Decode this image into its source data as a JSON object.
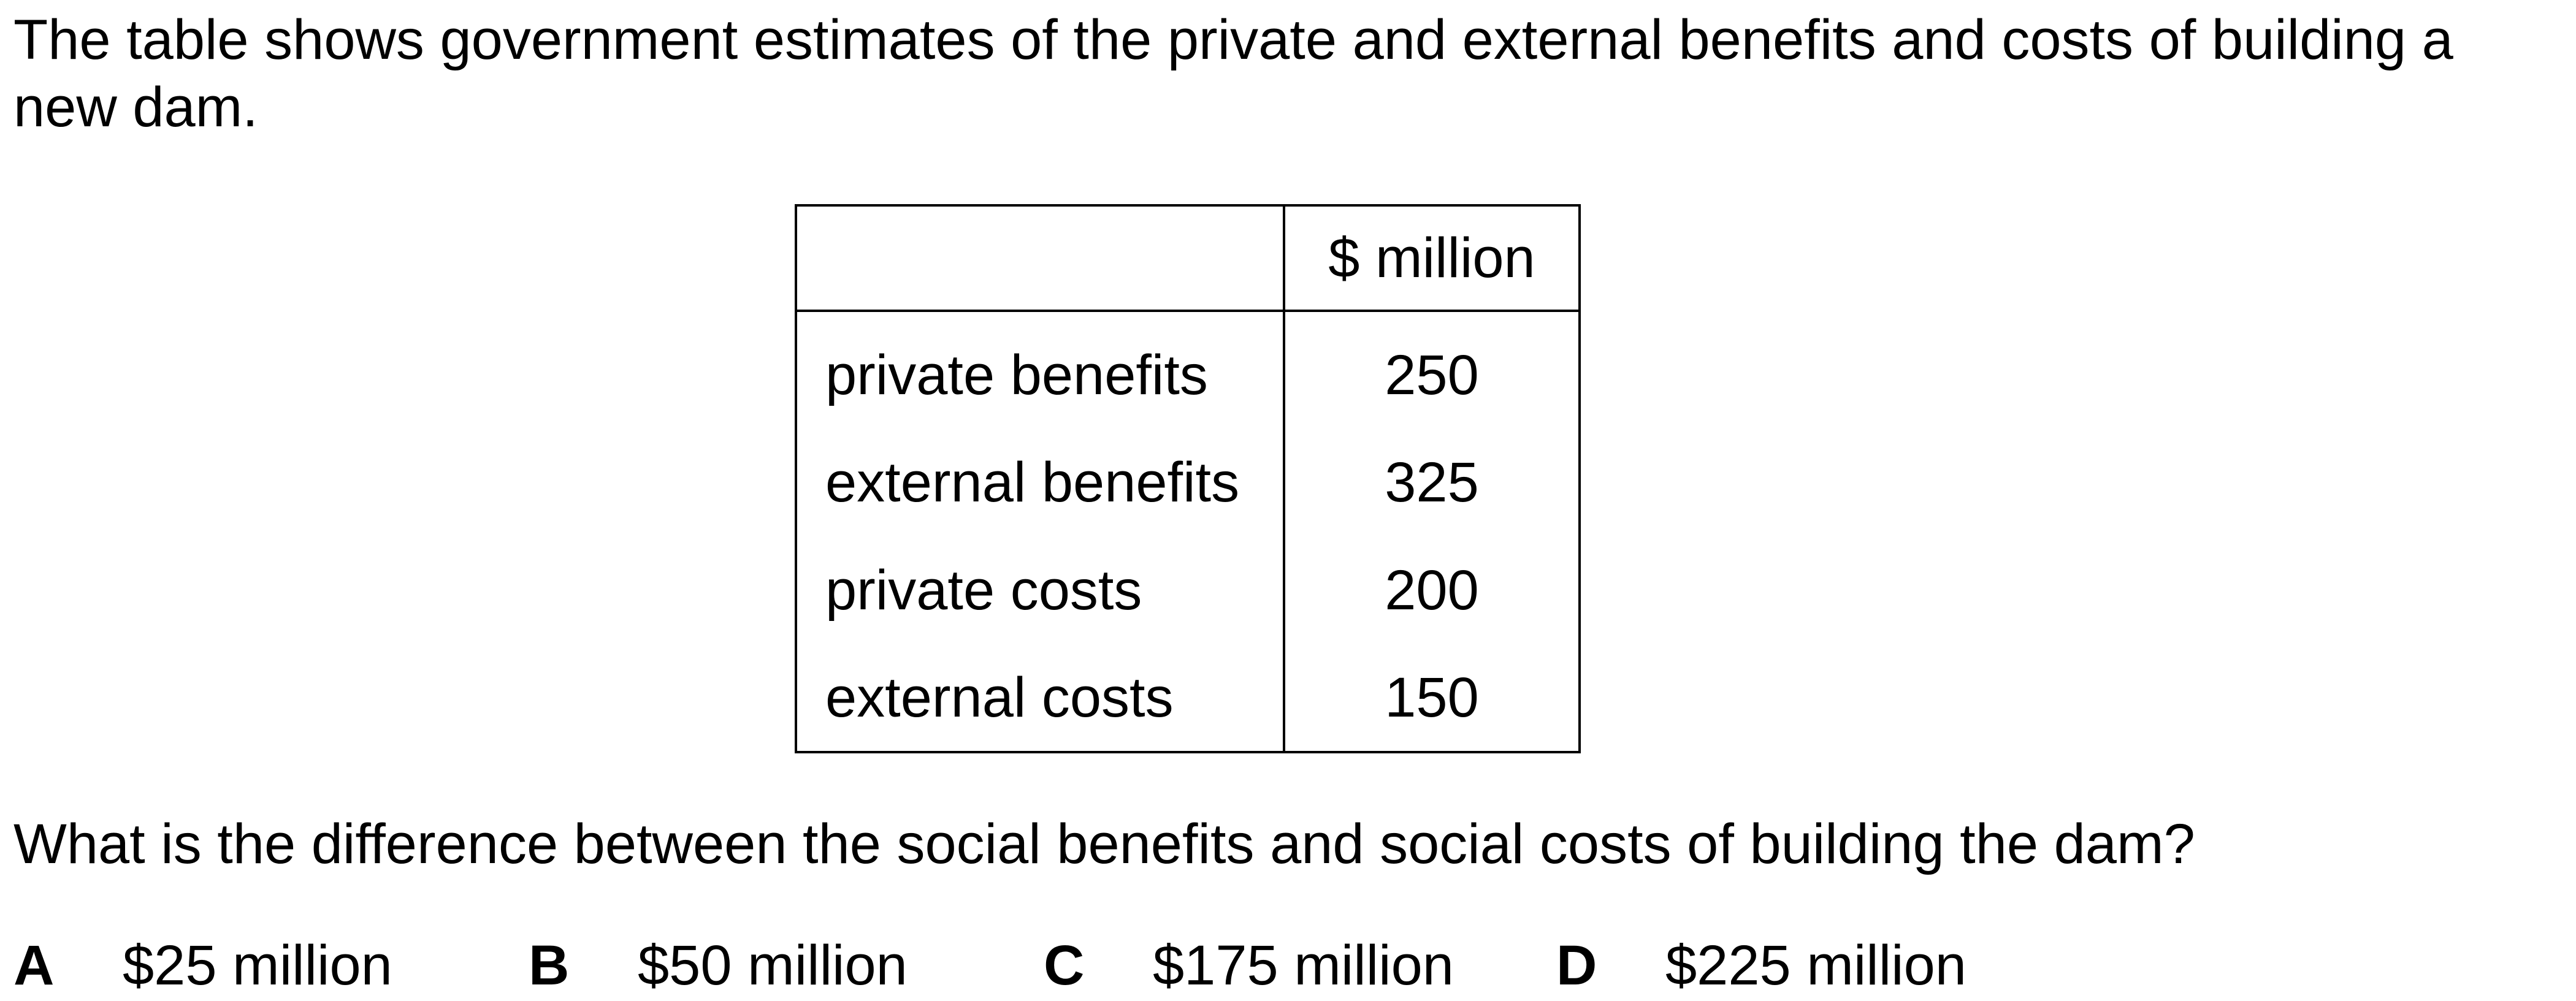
{
  "intro_text": "The table shows government estimates of the private and external benefits and costs of building a new dam.",
  "table": {
    "header": [
      "",
      "$ million"
    ],
    "rows": [
      {
        "label": "private benefits",
        "value": "250"
      },
      {
        "label": "external benefits",
        "value": "325"
      },
      {
        "label": "private costs",
        "value": "200"
      },
      {
        "label": "external costs",
        "value": "150"
      }
    ]
  },
  "question_text": "What is the difference between the social benefits and social costs of building the dam?",
  "options": [
    {
      "letter": "A",
      "text": "$25 million"
    },
    {
      "letter": "B",
      "text": "$50 million"
    },
    {
      "letter": "C",
      "text": "$175 million"
    },
    {
      "letter": "D",
      "text": "$225 million"
    }
  ]
}
